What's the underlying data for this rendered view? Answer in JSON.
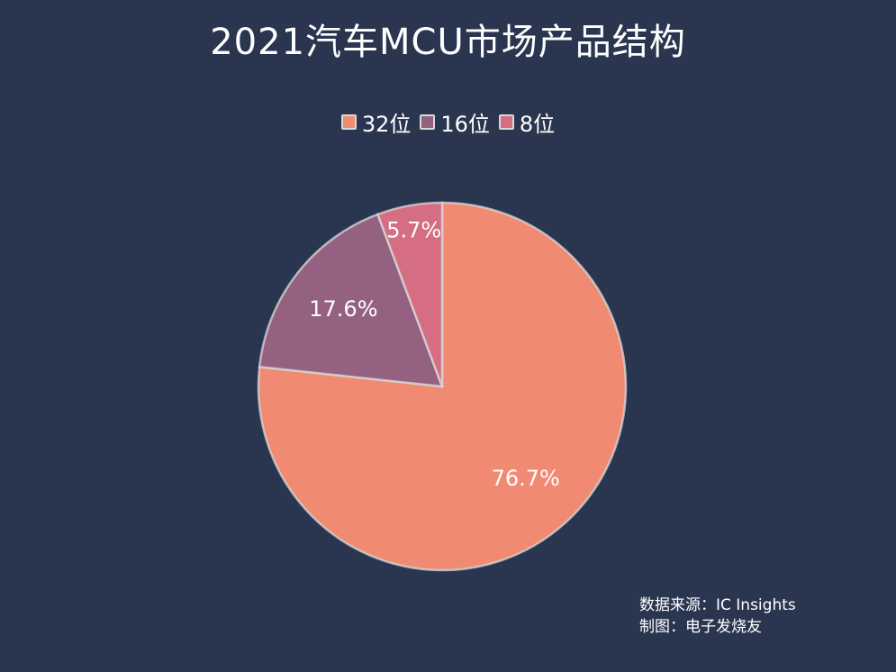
{
  "chart_data": {
    "type": "pie",
    "title": "2021汽车MCU市场产品结构",
    "categories": [
      "32位",
      "16位",
      "8位"
    ],
    "values": [
      76.7,
      17.6,
      5.7
    ],
    "value_labels": [
      "76.7%",
      "17.6%",
      "5.7%"
    ],
    "colors": [
      "#f08a72",
      "#946280",
      "#d56d83"
    ],
    "legend_position": "top-center",
    "start_angle": "12 o'clock",
    "direction": "clockwise"
  },
  "source": {
    "line1": "数据来源：IC Insights",
    "line2": "制图：电子发烧友"
  },
  "colors": {
    "background": "#2a3650",
    "slice_stroke": "#d9d9d9",
    "text": "#ffffff"
  }
}
